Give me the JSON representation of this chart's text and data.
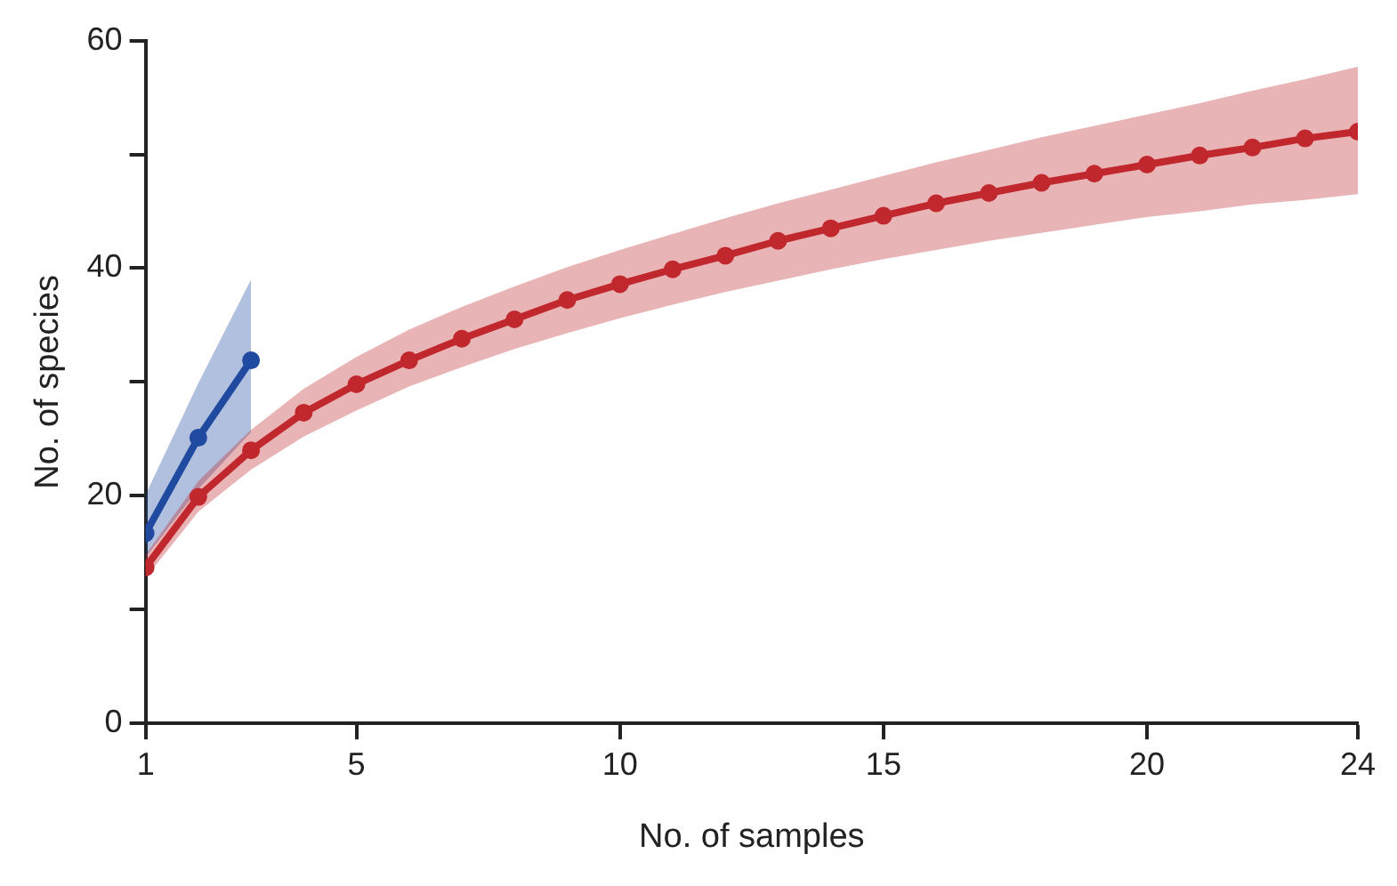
{
  "chart_data": {
    "type": "line",
    "xlabel": "No. of samples",
    "ylabel": "No. of species",
    "x": [
      1,
      2,
      3,
      4,
      5,
      6,
      7,
      8,
      9,
      10,
      11,
      12,
      13,
      14,
      15,
      16,
      17,
      18,
      19,
      20,
      21,
      22,
      23,
      24
    ],
    "series": [
      {
        "color": "#c0282f",
        "values": [
          13.7,
          19.9,
          24.0,
          27.3,
          29.8,
          31.9,
          33.8,
          35.5,
          37.2,
          38.6,
          39.9,
          41.1,
          42.4,
          43.5,
          44.6,
          45.7,
          46.6,
          47.5,
          48.3,
          49.1,
          49.9,
          50.6,
          51.4,
          52.0
        ],
        "upper": [
          14.8,
          21.3,
          25.8,
          29.4,
          32.2,
          34.6,
          36.6,
          38.4,
          40.1,
          41.6,
          43.0,
          44.4,
          45.7,
          46.9,
          48.1,
          49.3,
          50.4,
          51.5,
          52.5,
          53.5,
          54.5,
          55.6,
          56.6,
          57.7
        ],
        "lower": [
          12.8,
          18.6,
          22.3,
          25.2,
          27.5,
          29.6,
          31.3,
          32.9,
          34.3,
          35.6,
          36.8,
          37.9,
          38.9,
          39.9,
          40.8,
          41.6,
          42.4,
          43.1,
          43.8,
          44.5,
          45.0,
          45.6,
          46.0,
          46.5
        ]
      },
      {
        "color": "#1f4aa0",
        "x": [
          1,
          2,
          3
        ],
        "values": [
          16.7,
          25.1,
          31.9
        ],
        "upper": [
          20.1,
          29.9,
          39.0
        ],
        "lower": [
          14.6,
          20.6,
          25.6
        ]
      }
    ],
    "xlim": [
      1,
      24
    ],
    "xticks": [
      1,
      5,
      10,
      15,
      20,
      24
    ],
    "ylim": [
      0,
      60
    ],
    "yticks": [
      0,
      {
        "value": 10,
        "label": null
      },
      20,
      {
        "value": 30,
        "label": null
      },
      40,
      {
        "value": 50,
        "label": null
      },
      60
    ],
    "grid": false,
    "legend": false,
    "marker": "circle",
    "line_style": "solid"
  }
}
